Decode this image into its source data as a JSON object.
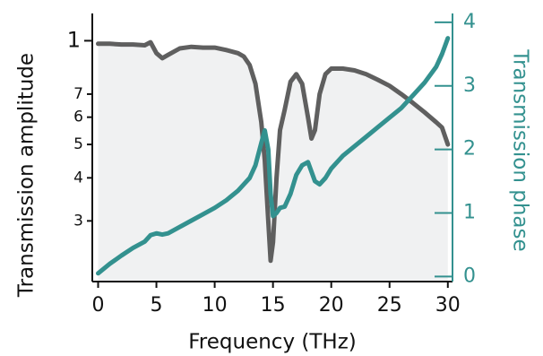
{
  "chart_data": {
    "type": "line",
    "xlabel": "Frequency (THz)",
    "ylabel": "Transmission amplitude",
    "y2label": "Transmission phase",
    "x": [
      0,
      1,
      2,
      3,
      4,
      4.5,
      5,
      5.5,
      6,
      7,
      8,
      9,
      10,
      11,
      12,
      12.5,
      13,
      13.5,
      14,
      14.3,
      14.6,
      14.8,
      15,
      15.3,
      15.6,
      16,
      16.5,
      17,
      17.5,
      18,
      18.3,
      18.6,
      19,
      19.5,
      20,
      21,
      22,
      23,
      24,
      25,
      26,
      27,
      28,
      29,
      29.5,
      30
    ],
    "series": [
      {
        "name": "Transmission amplitude",
        "color": "#5f5f5f",
        "fill": "#f0f1f2",
        "values": [
          0.98,
          0.98,
          0.975,
          0.975,
          0.97,
          0.99,
          0.92,
          0.89,
          0.91,
          0.95,
          0.96,
          0.955,
          0.955,
          0.94,
          0.92,
          0.9,
          0.85,
          0.75,
          0.58,
          0.45,
          0.3,
          0.23,
          0.26,
          0.4,
          0.55,
          0.63,
          0.76,
          0.8,
          0.75,
          0.6,
          0.52,
          0.55,
          0.7,
          0.8,
          0.83,
          0.83,
          0.82,
          0.8,
          0.77,
          0.74,
          0.7,
          0.66,
          0.62,
          0.58,
          0.56,
          0.5
        ]
      },
      {
        "name": "Transmission phase",
        "color": "#33918f",
        "axis": "y2",
        "values": [
          0.05,
          0.2,
          0.33,
          0.45,
          0.55,
          0.65,
          0.68,
          0.66,
          0.68,
          0.78,
          0.88,
          0.98,
          1.08,
          1.2,
          1.35,
          1.45,
          1.55,
          1.75,
          2.1,
          2.3,
          2.0,
          1.3,
          0.95,
          1.0,
          1.08,
          1.1,
          1.3,
          1.6,
          1.75,
          1.8,
          1.65,
          1.5,
          1.45,
          1.55,
          1.7,
          1.9,
          2.05,
          2.2,
          2.35,
          2.5,
          2.65,
          2.85,
          3.05,
          3.3,
          3.5,
          3.75
        ]
      }
    ],
    "xlim": [
      -0.5,
      30.4
    ],
    "xticks": [
      0,
      5,
      10,
      15,
      20,
      25,
      30
    ],
    "ylim": [
      0.2,
      1.2
    ],
    "ylog": true,
    "yticks": [
      1,
      {
        "value": 0.7,
        "label": "7"
      },
      {
        "value": 0.6,
        "label": "6"
      },
      {
        "value": 0.5,
        "label": "5"
      },
      {
        "value": 0.4,
        "label": "4"
      },
      {
        "value": 0.3,
        "label": "3"
      }
    ],
    "y2lim": [
      -0.08,
      4.14
    ],
    "y2ticks": [
      0,
      1,
      2,
      3,
      4
    ]
  }
}
